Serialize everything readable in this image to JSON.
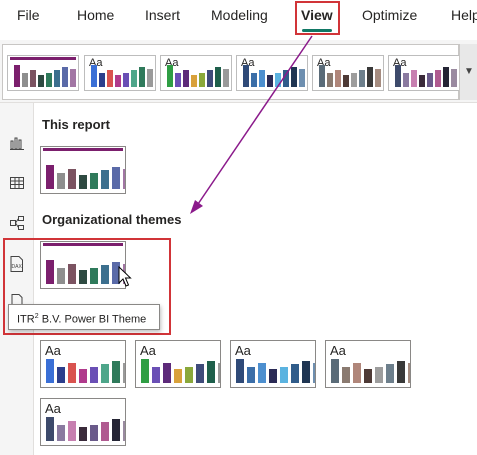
{
  "menu": {
    "items": [
      "File",
      "Home",
      "Insert",
      "Modeling",
      "View",
      "Optimize",
      "Help"
    ],
    "active": "View"
  },
  "ribbon": {
    "themes": [
      {
        "style": "topbar",
        "bar": "#7b1f6d",
        "colors": [
          "#7b1f6d",
          "#8e8e8e",
          "#7b5361",
          "#2e4a41",
          "#2f7a5b",
          "#3c6f8e",
          "#5a6aa8",
          "#a276a4"
        ]
      },
      {
        "style": "aa",
        "label": "Aa",
        "colors": [
          "#3a6fd6",
          "#2c3e8c",
          "#d9534f",
          "#b03a8c",
          "#6a4fb5",
          "#4ea68a",
          "#2f7a5b",
          "#9a9a9a"
        ]
      },
      {
        "style": "aa",
        "label": "Aa",
        "colors": [
          "#2f9e44",
          "#6a4fb5",
          "#5d2a7a",
          "#d9a13b",
          "#8aa83a",
          "#3f4b7a",
          "#1e5f4b",
          "#9a9a9a"
        ]
      },
      {
        "style": "aa",
        "label": "Aa",
        "colors": [
          "#2f4a78",
          "#3b6ea8",
          "#4d8fcf",
          "#2a2a55",
          "#5bb3e0",
          "#305c8a",
          "#1f3552",
          "#6e8fb0"
        ]
      },
      {
        "style": "aa",
        "label": "Aa",
        "colors": [
          "#5a6b78",
          "#8a7a70",
          "#b0867a",
          "#4e3a36",
          "#9d9d9d",
          "#6d7f8c",
          "#393939",
          "#a58c80"
        ]
      },
      {
        "style": "aa",
        "label": "Aa",
        "colors": [
          "#3d4a6b",
          "#8a7aa0",
          "#c77fb0",
          "#3a2a3a",
          "#6a5a8a",
          "#b05a90",
          "#252535",
          "#9a8aa0"
        ]
      }
    ],
    "scroll_icon": "chevron-down-icon"
  },
  "side_nav": {
    "icons": [
      "report-view-icon",
      "table-view-icon",
      "model-view-icon",
      "dax-query-icon",
      "tmdl-view-icon"
    ],
    "dax_label": "DAX"
  },
  "panel": {
    "this_report_title": "This report",
    "org_themes_title": "Organizational themes",
    "this_report_theme": {
      "colors": [
        "#7b1f6d",
        "#8e8e8e",
        "#7b5361",
        "#2e4a41",
        "#2f7a5b",
        "#3c6f8e",
        "#5a6aa8",
        "#a276a4"
      ],
      "top": "#7b1f6d"
    },
    "org_theme": {
      "colors": [
        "#7b1f6d",
        "#8e8e8e",
        "#7b5361",
        "#2e4a41",
        "#2f7a5b",
        "#3c6f8e",
        "#5a6aa8",
        "#a276a4"
      ],
      "top": "#7b1f6d"
    },
    "tooltip": {
      "pre": "ITR",
      "sup": "2",
      "post": " B.V. Power BI Theme"
    },
    "other_themes": [
      {
        "label": "Aa",
        "colors": [
          "#3a6fd6",
          "#2c3e8c",
          "#d9534f",
          "#b03a8c",
          "#6a4fb5",
          "#4ea68a",
          "#2f7a5b",
          "#9a9a9a"
        ]
      },
      {
        "label": "Aa",
        "colors": [
          "#2f9e44",
          "#6a4fb5",
          "#5d2a7a",
          "#d9a13b",
          "#8aa83a",
          "#3f4b7a",
          "#1e5f4b",
          "#9a9a9a"
        ]
      },
      {
        "label": "Aa",
        "colors": [
          "#2f4a78",
          "#3b6ea8",
          "#4d8fcf",
          "#2a2a55",
          "#5bb3e0",
          "#305c8a",
          "#1f3552",
          "#6e8fb0"
        ]
      },
      {
        "label": "Aa",
        "colors": [
          "#5a6b78",
          "#8a7a70",
          "#b0867a",
          "#4e3a36",
          "#9d9d9d",
          "#6d7f8c",
          "#393939",
          "#a58c80"
        ]
      },
      {
        "label": "Aa",
        "colors": [
          "#3d4a6b",
          "#8a7aa0",
          "#c77fb0",
          "#3a2a3a",
          "#6a5a8a",
          "#b05a90",
          "#252535",
          "#9a8aa0"
        ]
      }
    ]
  },
  "annotation": {
    "arrow_color": "#8b1a8b",
    "highlight_color": "#d13438"
  }
}
